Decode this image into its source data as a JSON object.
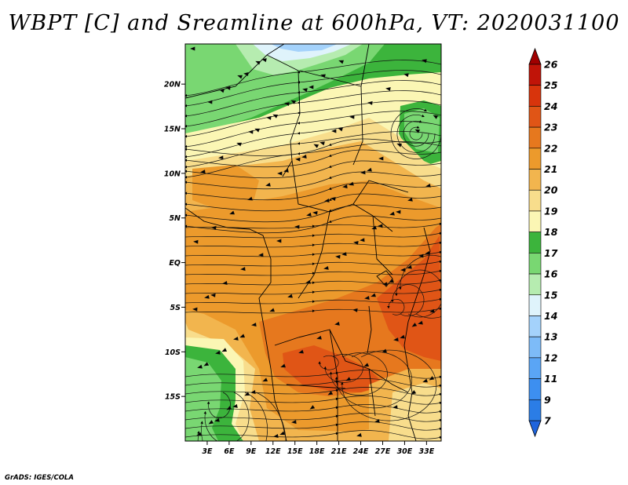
{
  "title": "WBPT [C] and Sreamline at 600hPa, VT: 2020031100",
  "credit": "GrADS: IGES/COLA",
  "map": {
    "lon_range": [
      0,
      35
    ],
    "lat_range": [
      -20,
      24.5
    ],
    "x_ticks": [
      {
        "value": 3,
        "label": "3E"
      },
      {
        "value": 6,
        "label": "6E"
      },
      {
        "value": 9,
        "label": "9E"
      },
      {
        "value": 12,
        "label": "12E"
      },
      {
        "value": 15,
        "label": "15E"
      },
      {
        "value": 18,
        "label": "18E"
      },
      {
        "value": 21,
        "label": "21E"
      },
      {
        "value": 24,
        "label": "24E"
      },
      {
        "value": 27,
        "label": "27E"
      },
      {
        "value": 30,
        "label": "30E"
      },
      {
        "value": 33,
        "label": "33E"
      }
    ],
    "y_ticks": [
      {
        "value": 20,
        "label": "20N"
      },
      {
        "value": 15,
        "label": "15N"
      },
      {
        "value": 10,
        "label": "10N"
      },
      {
        "value": 5,
        "label": "5N"
      },
      {
        "value": 0,
        "label": "EQ"
      },
      {
        "value": -5,
        "label": "5S"
      },
      {
        "value": -10,
        "label": "10S"
      },
      {
        "value": -15,
        "label": "15S"
      }
    ]
  },
  "colorbar": {
    "levels": [
      "7",
      "9",
      "11",
      "12",
      "13",
      "14",
      "15",
      "16",
      "17",
      "18",
      "19",
      "20",
      "21",
      "22",
      "23",
      "24",
      "25",
      "26"
    ],
    "colors": [
      "#1e64dc",
      "#2b7de6",
      "#3d8ff0",
      "#5aa5f5",
      "#7dbbf8",
      "#a4d2fb",
      "#dff3fb",
      "#b6ecb0",
      "#79d772",
      "#3cb43c",
      "#fbf6b4",
      "#f8dd8c",
      "#f2b54e",
      "#ec9a2c",
      "#e6781e",
      "#e05516",
      "#d8340c",
      "#c01408",
      "#a00000"
    ]
  },
  "field_colors": {
    "t14": "#a4d2fb",
    "t15": "#dff3fb",
    "t16": "#b6ecb0",
    "t17": "#79d772",
    "t18": "#3cb43c",
    "t19": "#fbf6b4",
    "t20": "#f8dd8c",
    "t21": "#f2b54e",
    "t22": "#ec9a2c",
    "t23": "#e6781e",
    "t24": "#e05516"
  }
}
